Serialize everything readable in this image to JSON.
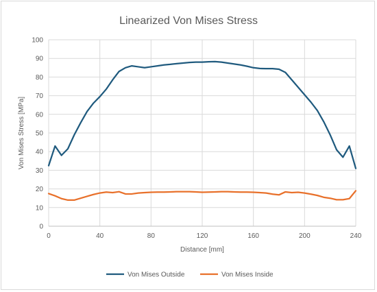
{
  "chart_data": {
    "type": "line",
    "title": "Linearized Von Mises Stress",
    "xlabel": "Distance [mm]",
    "ylabel": "Von Mises Stress [MPa]",
    "xlim": [
      0,
      240
    ],
    "ylim": [
      0,
      100
    ],
    "x_ticks": [
      0,
      40,
      80,
      120,
      160,
      200,
      240
    ],
    "y_ticks": [
      0,
      10,
      20,
      30,
      40,
      50,
      60,
      70,
      80,
      90,
      100
    ],
    "x_tick_labels": [
      "0",
      "40",
      "80",
      "120",
      "160",
      "200",
      "240"
    ],
    "y_tick_labels": [
      "0",
      "10",
      "20",
      "30",
      "40",
      "50",
      "60",
      "70",
      "80",
      "90",
      "100"
    ],
    "grid": "vertical and horizontal",
    "legend_position": "bottom",
    "x": [
      0,
      5,
      10,
      15,
      20,
      25,
      30,
      35,
      40,
      45,
      50,
      55,
      60,
      65,
      70,
      75,
      80,
      85,
      90,
      95,
      100,
      105,
      110,
      115,
      120,
      125,
      130,
      135,
      140,
      145,
      150,
      155,
      160,
      165,
      170,
      175,
      180,
      185,
      190,
      195,
      200,
      205,
      210,
      215,
      220,
      225,
      230,
      235,
      240
    ],
    "series": [
      {
        "name": "Von Mises Outside",
        "color": "#1f5a7e",
        "values": [
          32.5,
          43,
          38,
          41.5,
          49,
          55.5,
          61.5,
          66,
          69.5,
          73.5,
          78.5,
          83,
          85,
          86,
          85.5,
          85,
          85.5,
          86,
          86.5,
          86.8,
          87.2,
          87.5,
          87.8,
          88,
          88,
          88.2,
          88.3,
          88,
          87.5,
          87,
          86.5,
          85.8,
          85,
          84.6,
          84.5,
          84.5,
          84.2,
          82.5,
          78.5,
          74.5,
          70.5,
          66.5,
          62,
          56,
          49,
          41,
          37,
          43,
          31
        ]
      },
      {
        "name": "Von Mises Inside",
        "color": "#e8702a",
        "values": [
          17.5,
          16.3,
          14.8,
          14,
          14,
          15,
          16,
          17,
          17.8,
          18.3,
          18,
          18.5,
          17.3,
          17.3,
          17.8,
          18,
          18.2,
          18.3,
          18.3,
          18.4,
          18.5,
          18.5,
          18.5,
          18.4,
          18.2,
          18.3,
          18.4,
          18.5,
          18.5,
          18.4,
          18.3,
          18.3,
          18.2,
          18,
          17.8,
          17.2,
          16.8,
          18.4,
          18,
          18.2,
          17.8,
          17.2,
          16.5,
          15.5,
          15,
          14.2,
          14.2,
          14.8,
          19
        ]
      }
    ]
  }
}
